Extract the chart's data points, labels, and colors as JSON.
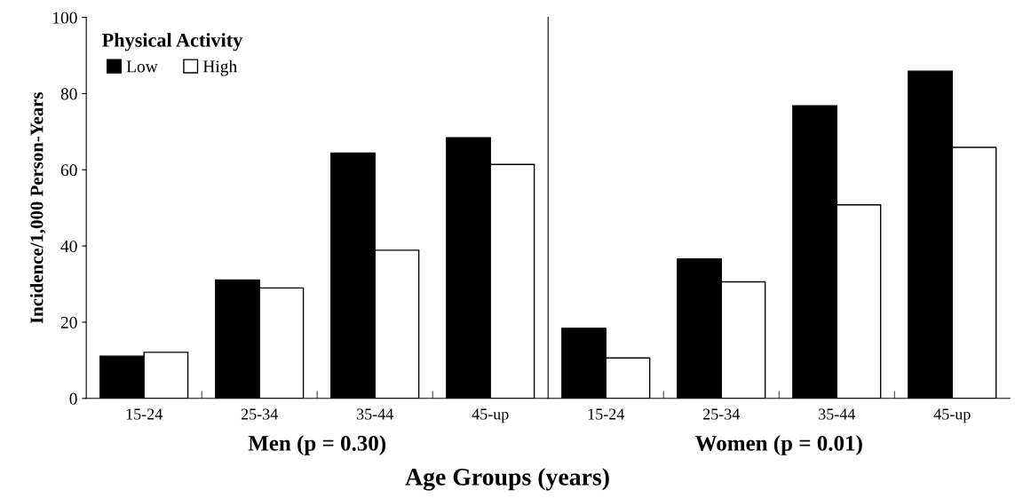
{
  "chart_data": [
    {
      "type": "bar",
      "ylabel": "Incidence/1,000 Person-Years",
      "xlabel": "Men (p = 0.30)",
      "legend_title": "Physical Activity",
      "legend": "top left",
      "grid": false,
      "categories": [
        "15-24",
        "25-34",
        "35-44",
        "45-up"
      ],
      "ylim": [
        0,
        100
      ],
      "yticks": [
        0,
        20,
        40,
        60,
        80,
        100
      ],
      "series": [
        {
          "name": "Low",
          "color": "#000000",
          "values": [
            11.1,
            31.1,
            64.4,
            68.4
          ]
        },
        {
          "name": "High",
          "color": "#ffffff",
          "values": [
            12.1,
            29.0,
            38.9,
            61.4
          ]
        }
      ],
      "annotations": [
        "Age Groups (years)"
      ]
    },
    {
      "type": "bar",
      "xlabel": "Women (p = 0.01)",
      "grid": false,
      "tick_labels": "x",
      "categories": [
        "15-24",
        "25-34",
        "35-44",
        "45-up"
      ],
      "ylim": [
        0,
        100
      ],
      "yticks": [
        0,
        20,
        40,
        60,
        80,
        100
      ],
      "series": [
        {
          "color": "#000000",
          "values": [
            18.4,
            36.6,
            76.8,
            85.9
          ]
        },
        {
          "color": "#ffffff",
          "values": [
            10.6,
            30.6,
            50.8,
            65.9
          ]
        }
      ]
    }
  ]
}
